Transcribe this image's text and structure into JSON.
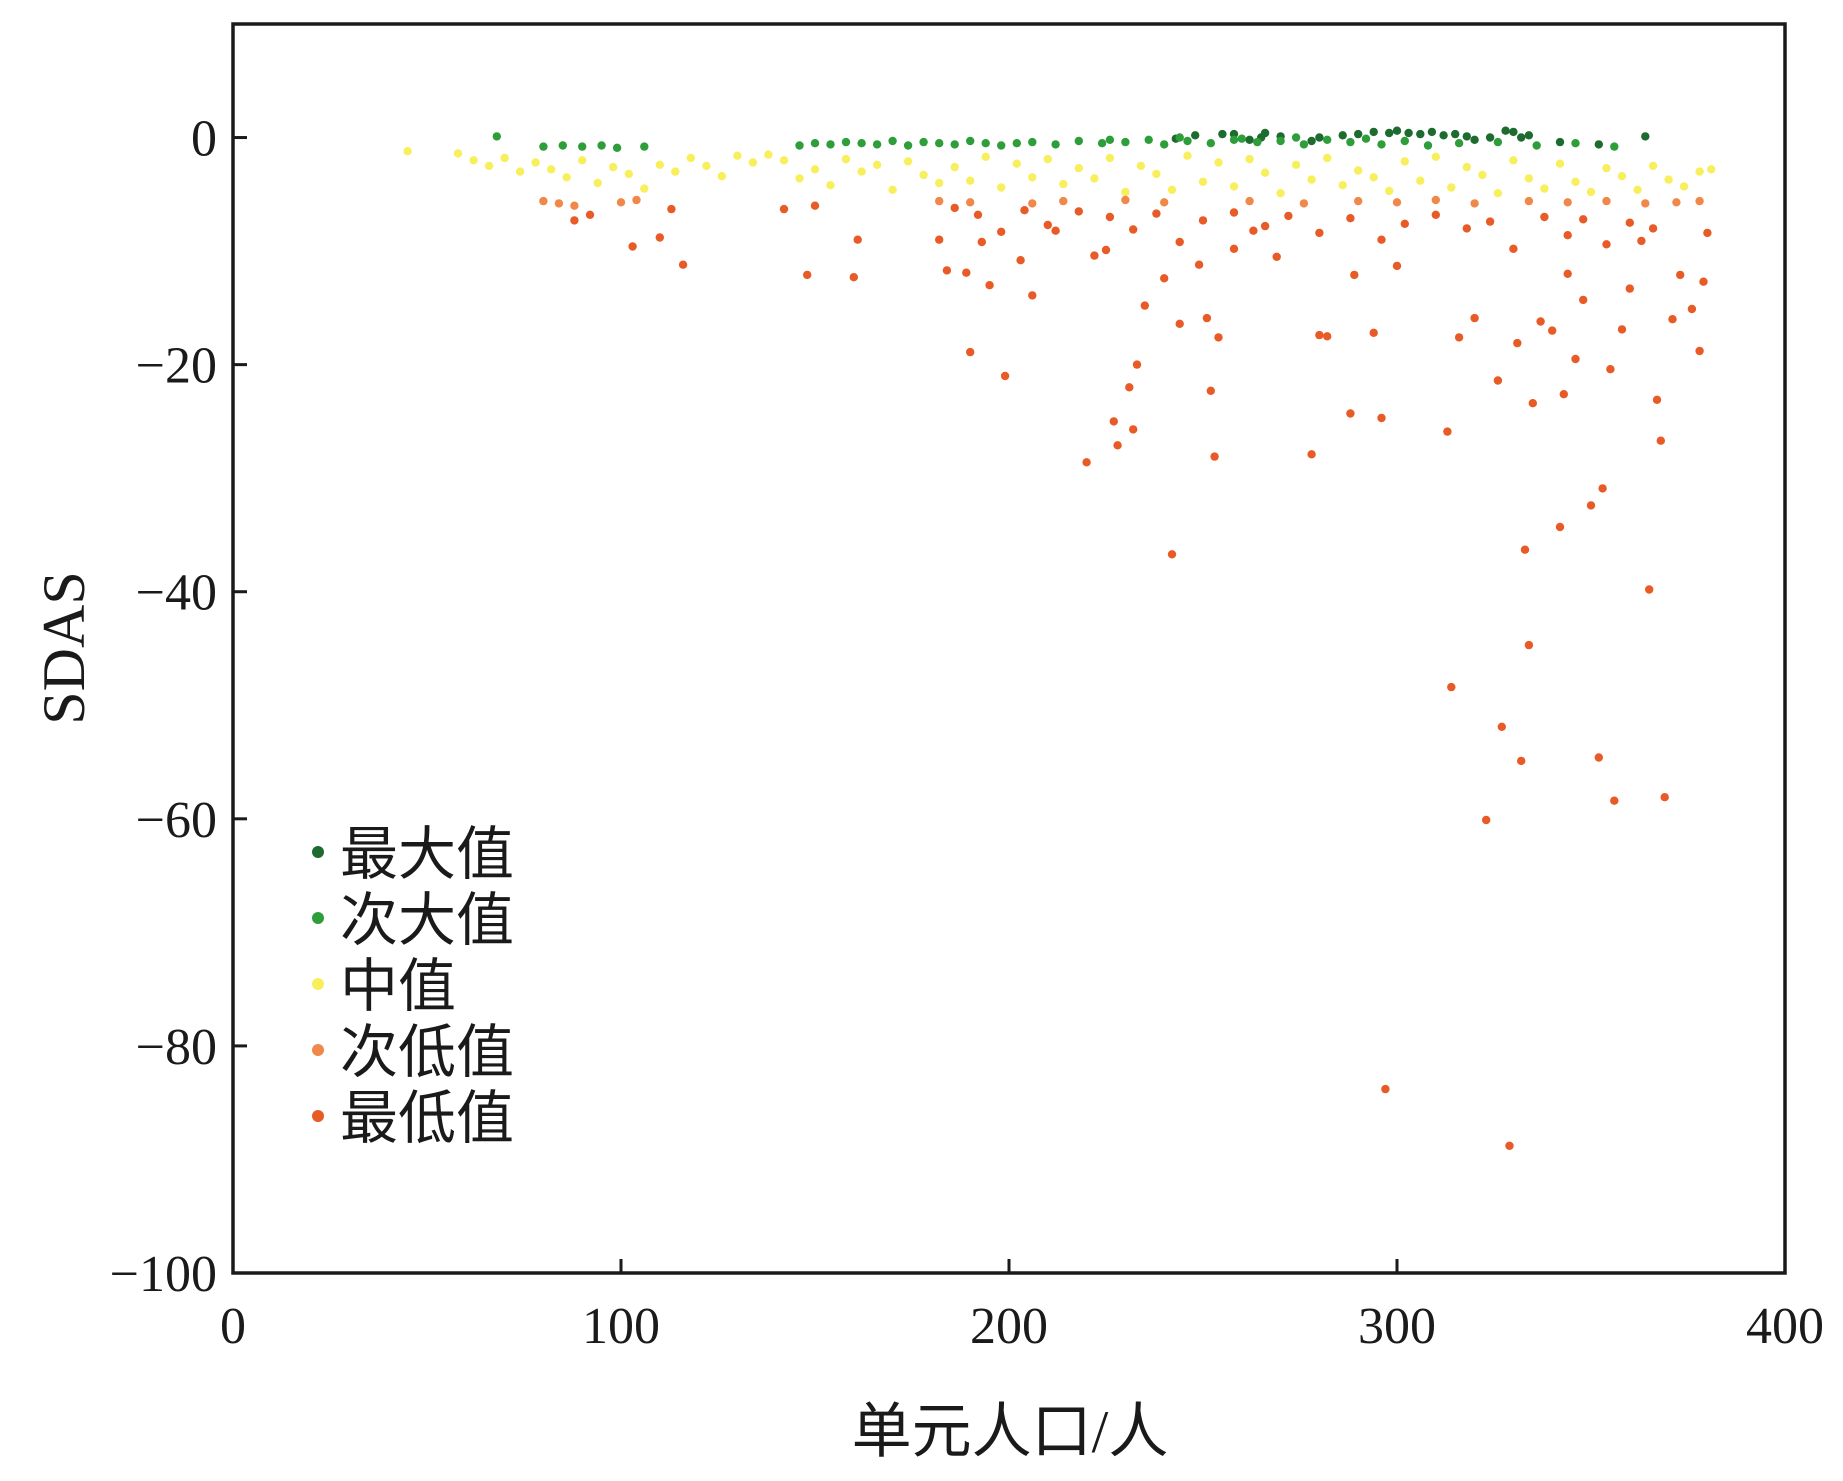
{
  "chart_data": {
    "type": "scatter",
    "xlabel": "单元人口/人",
    "ylabel": "SDAS",
    "xlim": [
      0,
      400
    ],
    "ylim": [
      -100,
      10
    ],
    "x_ticks": [
      0,
      100,
      200,
      300,
      400
    ],
    "x_tick_labels": [
      "0",
      "100",
      "200",
      "300",
      "400"
    ],
    "y_ticks": [
      0,
      -20,
      -40,
      -60,
      -80,
      -100
    ],
    "y_tick_labels": [
      "0",
      "−20",
      "−40",
      "−60",
      "−80",
      "−100"
    ],
    "grid": false,
    "legend_position": "bottom-left",
    "series": [
      {
        "name": "最大值",
        "color": "#1d6b2f",
        "points": [
          [
            248,
            0.2
          ],
          [
            255,
            0.3
          ],
          [
            262,
            -0.2
          ],
          [
            270,
            0.1
          ],
          [
            278,
            -0.3
          ],
          [
            286,
            0.2
          ],
          [
            294,
            0.5
          ],
          [
            300,
            0.6
          ],
          [
            306,
            0.3
          ],
          [
            312,
            0.2
          ],
          [
            318,
            0.1
          ],
          [
            324,
            0.0
          ],
          [
            330,
            0.5
          ],
          [
            334,
            0.2
          ],
          [
            342,
            -0.4
          ],
          [
            352,
            -0.6
          ],
          [
            364,
            0.1
          ],
          [
            243,
            -0.1
          ],
          [
            266,
            0.4
          ],
          [
            280,
            0.0
          ],
          [
            290,
            0.3
          ],
          [
            303,
            0.4
          ],
          [
            309,
            0.5
          ],
          [
            320,
            -0.2
          ],
          [
            328,
            0.6
          ],
          [
            265,
            0.0
          ],
          [
            298,
            0.4
          ],
          [
            315,
            0.3
          ],
          [
            332,
            0.0
          ],
          [
            258,
            0.3
          ]
        ]
      },
      {
        "name": "次大值",
        "color": "#2e9e3a",
        "points": [
          [
            68,
            0.1
          ],
          [
            80,
            -0.8
          ],
          [
            85,
            -0.7
          ],
          [
            90,
            -0.8
          ],
          [
            95,
            -0.7
          ],
          [
            99,
            -0.9
          ],
          [
            106,
            -0.8
          ],
          [
            146,
            -0.7
          ],
          [
            150,
            -0.5
          ],
          [
            154,
            -0.6
          ],
          [
            158,
            -0.4
          ],
          [
            162,
            -0.5
          ],
          [
            166,
            -0.6
          ],
          [
            170,
            -0.3
          ],
          [
            174,
            -0.7
          ],
          [
            178,
            -0.4
          ],
          [
            182,
            -0.5
          ],
          [
            186,
            -0.6
          ],
          [
            190,
            -0.3
          ],
          [
            194,
            -0.5
          ],
          [
            198,
            -0.7
          ],
          [
            202,
            -0.5
          ],
          [
            206,
            -0.4
          ],
          [
            212,
            -0.6
          ],
          [
            218,
            -0.3
          ],
          [
            224,
            -0.5
          ],
          [
            230,
            -0.4
          ],
          [
            236,
            -0.2
          ],
          [
            240,
            -0.6
          ],
          [
            246,
            -0.3
          ],
          [
            252,
            -0.5
          ],
          [
            258,
            -0.2
          ],
          [
            264,
            -0.4
          ],
          [
            270,
            -0.3
          ],
          [
            276,
            -0.6
          ],
          [
            282,
            -0.2
          ],
          [
            288,
            -0.4
          ],
          [
            296,
            -0.6
          ],
          [
            302,
            -0.3
          ],
          [
            308,
            -0.7
          ],
          [
            316,
            -0.5
          ],
          [
            326,
            -0.4
          ],
          [
            336,
            -0.7
          ],
          [
            346,
            -0.5
          ],
          [
            356,
            -0.8
          ],
          [
            226,
            -0.2
          ],
          [
            244,
            0.0
          ],
          [
            260,
            -0.1
          ],
          [
            274,
            0.0
          ],
          [
            292,
            -0.1
          ]
        ]
      },
      {
        "name": "中值",
        "color": "#f8ef5c",
        "points": [
          [
            45,
            -1.2
          ],
          [
            58,
            -1.4
          ],
          [
            62,
            -2.0
          ],
          [
            66,
            -2.5
          ],
          [
            70,
            -1.8
          ],
          [
            74,
            -3.0
          ],
          [
            78,
            -2.2
          ],
          [
            82,
            -2.8
          ],
          [
            86,
            -3.5
          ],
          [
            90,
            -2.0
          ],
          [
            94,
            -4.0
          ],
          [
            98,
            -2.6
          ],
          [
            102,
            -3.2
          ],
          [
            106,
            -4.5
          ],
          [
            110,
            -2.4
          ],
          [
            114,
            -3.0
          ],
          [
            118,
            -1.8
          ],
          [
            122,
            -2.5
          ],
          [
            126,
            -3.4
          ],
          [
            130,
            -1.6
          ],
          [
            134,
            -2.2
          ],
          [
            138,
            -1.5
          ],
          [
            142,
            -2.0
          ],
          [
            146,
            -3.6
          ],
          [
            150,
            -2.8
          ],
          [
            154,
            -4.2
          ],
          [
            158,
            -1.9
          ],
          [
            162,
            -3.0
          ],
          [
            166,
            -2.4
          ],
          [
            170,
            -4.6
          ],
          [
            174,
            -2.1
          ],
          [
            178,
            -3.3
          ],
          [
            182,
            -4.0
          ],
          [
            186,
            -2.6
          ],
          [
            190,
            -3.8
          ],
          [
            194,
            -1.7
          ],
          [
            198,
            -4.4
          ],
          [
            202,
            -2.3
          ],
          [
            206,
            -3.5
          ],
          [
            210,
            -1.9
          ],
          [
            214,
            -4.1
          ],
          [
            218,
            -2.7
          ],
          [
            222,
            -3.6
          ],
          [
            226,
            -1.8
          ],
          [
            230,
            -4.8
          ],
          [
            234,
            -2.5
          ],
          [
            238,
            -3.2
          ],
          [
            242,
            -4.6
          ],
          [
            246,
            -1.6
          ],
          [
            250,
            -3.9
          ],
          [
            254,
            -2.2
          ],
          [
            258,
            -4.3
          ],
          [
            262,
            -1.9
          ],
          [
            266,
            -3.1
          ],
          [
            270,
            -4.9
          ],
          [
            274,
            -2.4
          ],
          [
            278,
            -3.7
          ],
          [
            282,
            -1.8
          ],
          [
            286,
            -4.2
          ],
          [
            290,
            -2.9
          ],
          [
            294,
            -3.5
          ],
          [
            298,
            -4.7
          ],
          [
            302,
            -2.1
          ],
          [
            306,
            -3.8
          ],
          [
            310,
            -1.7
          ],
          [
            314,
            -4.4
          ],
          [
            318,
            -2.6
          ],
          [
            322,
            -3.3
          ],
          [
            326,
            -4.9
          ],
          [
            330,
            -2.0
          ],
          [
            334,
            -3.6
          ],
          [
            338,
            -4.5
          ],
          [
            342,
            -2.3
          ],
          [
            346,
            -3.9
          ],
          [
            350,
            -4.8
          ],
          [
            354,
            -2.7
          ],
          [
            358,
            -3.4
          ],
          [
            362,
            -4.6
          ],
          [
            366,
            -2.5
          ],
          [
            370,
            -3.7
          ],
          [
            374,
            -4.3
          ],
          [
            378,
            -3.0
          ],
          [
            381,
            -2.8
          ]
        ]
      },
      {
        "name": "次低值",
        "color": "#f0884a",
        "points": [
          [
            80,
            -5.6
          ],
          [
            84,
            -5.8
          ],
          [
            88,
            -6.0
          ],
          [
            100,
            -5.7
          ],
          [
            104,
            -5.5
          ],
          [
            182,
            -5.6
          ],
          [
            190,
            -5.7
          ],
          [
            206,
            -5.8
          ],
          [
            214,
            -5.6
          ],
          [
            230,
            -5.5
          ],
          [
            240,
            -5.7
          ],
          [
            262,
            -5.6
          ],
          [
            276,
            -5.8
          ],
          [
            290,
            -5.6
          ],
          [
            300,
            -5.7
          ],
          [
            310,
            -5.5
          ],
          [
            320,
            -5.8
          ],
          [
            334,
            -5.6
          ],
          [
            344,
            -5.7
          ],
          [
            354,
            -5.6
          ],
          [
            364,
            -5.8
          ],
          [
            372,
            -5.7
          ],
          [
            378,
            -5.6
          ]
        ]
      },
      {
        "name": "最低值",
        "color": "#e85a26",
        "points": [
          [
            88,
            -7.3
          ],
          [
            92,
            -6.8
          ],
          [
            103,
            -9.6
          ],
          [
            110,
            -8.8
          ],
          [
            113,
            -6.3
          ],
          [
            116,
            -11.2
          ],
          [
            142,
            -6.3
          ],
          [
            148,
            -12.1
          ],
          [
            150,
            -6.0
          ],
          [
            160,
            -12.3
          ],
          [
            161,
            -9.0
          ],
          [
            182,
            -9.0
          ],
          [
            184,
            -11.7
          ],
          [
            186,
            -6.2
          ],
          [
            189,
            -11.9
          ],
          [
            190,
            -18.9
          ],
          [
            193,
            -9.2
          ],
          [
            195,
            -13.0
          ],
          [
            199,
            -21.0
          ],
          [
            203,
            -10.8
          ],
          [
            206,
            -13.9
          ],
          [
            212,
            -8.2
          ],
          [
            220,
            -28.6
          ],
          [
            222,
            -10.4
          ],
          [
            225,
            -9.9
          ],
          [
            227,
            -25.0
          ],
          [
            228,
            -27.1
          ],
          [
            231,
            -22.0
          ],
          [
            232,
            -25.7
          ],
          [
            233,
            -20.0
          ],
          [
            235,
            -14.8
          ],
          [
            240,
            -12.4
          ],
          [
            242,
            -36.7
          ],
          [
            244,
            -16.4
          ],
          [
            249,
            -11.2
          ],
          [
            251,
            -15.9
          ],
          [
            252,
            -22.3
          ],
          [
            253,
            -28.1
          ],
          [
            254,
            -17.6
          ],
          [
            258,
            -9.8
          ],
          [
            263,
            -8.2
          ],
          [
            269,
            -10.5
          ],
          [
            278,
            -27.9
          ],
          [
            280,
            -17.4
          ],
          [
            282,
            -17.5
          ],
          [
            288,
            -24.3
          ],
          [
            289,
            -12.1
          ],
          [
            294,
            -17.2
          ],
          [
            296,
            -24.7
          ],
          [
            297,
            -83.8
          ],
          [
            300,
            -11.3
          ],
          [
            313,
            -25.9
          ],
          [
            314,
            -48.4
          ],
          [
            316,
            -17.6
          ],
          [
            320,
            -15.9
          ],
          [
            323,
            -60.1
          ],
          [
            326,
            -21.4
          ],
          [
            327,
            -51.9
          ],
          [
            329,
            -88.8
          ],
          [
            331,
            -18.1
          ],
          [
            332,
            -54.9
          ],
          [
            333,
            -36.3
          ],
          [
            334,
            -44.7
          ],
          [
            335,
            -23.4
          ],
          [
            337,
            -16.2
          ],
          [
            340,
            -17.0
          ],
          [
            342,
            -34.3
          ],
          [
            343,
            -22.6
          ],
          [
            344,
            -12.0
          ],
          [
            346,
            -19.5
          ],
          [
            348,
            -14.3
          ],
          [
            350,
            -32.4
          ],
          [
            352,
            -54.6
          ],
          [
            353,
            -30.9
          ],
          [
            355,
            -20.4
          ],
          [
            356,
            -58.4
          ],
          [
            358,
            -16.9
          ],
          [
            360,
            -13.3
          ],
          [
            363,
            -9.1
          ],
          [
            365,
            -39.8
          ],
          [
            367,
            -23.1
          ],
          [
            368,
            -26.7
          ],
          [
            369,
            -58.1
          ],
          [
            371,
            -16.0
          ],
          [
            373,
            -12.1
          ],
          [
            376,
            -15.1
          ],
          [
            378,
            -18.8
          ],
          [
            379,
            -12.7
          ],
          [
            380,
            -8.4
          ],
          [
            366,
            -8.0
          ],
          [
            360,
            -7.5
          ],
          [
            354,
            -9.4
          ],
          [
            348,
            -7.2
          ],
          [
            344,
            -8.6
          ],
          [
            338,
            -7.0
          ],
          [
            330,
            -9.8
          ],
          [
            324,
            -7.4
          ],
          [
            318,
            -8.0
          ],
          [
            310,
            -6.8
          ],
          [
            302,
            -7.6
          ],
          [
            296,
            -9.0
          ],
          [
            288,
            -7.1
          ],
          [
            280,
            -8.4
          ],
          [
            272,
            -6.9
          ],
          [
            266,
            -7.8
          ],
          [
            258,
            -6.6
          ],
          [
            250,
            -7.3
          ],
          [
            244,
            -9.2
          ],
          [
            238,
            -6.7
          ],
          [
            232,
            -8.1
          ],
          [
            226,
            -7.0
          ],
          [
            218,
            -6.5
          ],
          [
            210,
            -7.7
          ],
          [
            204,
            -6.4
          ],
          [
            198,
            -8.3
          ],
          [
            192,
            -6.8
          ]
        ]
      }
    ]
  }
}
